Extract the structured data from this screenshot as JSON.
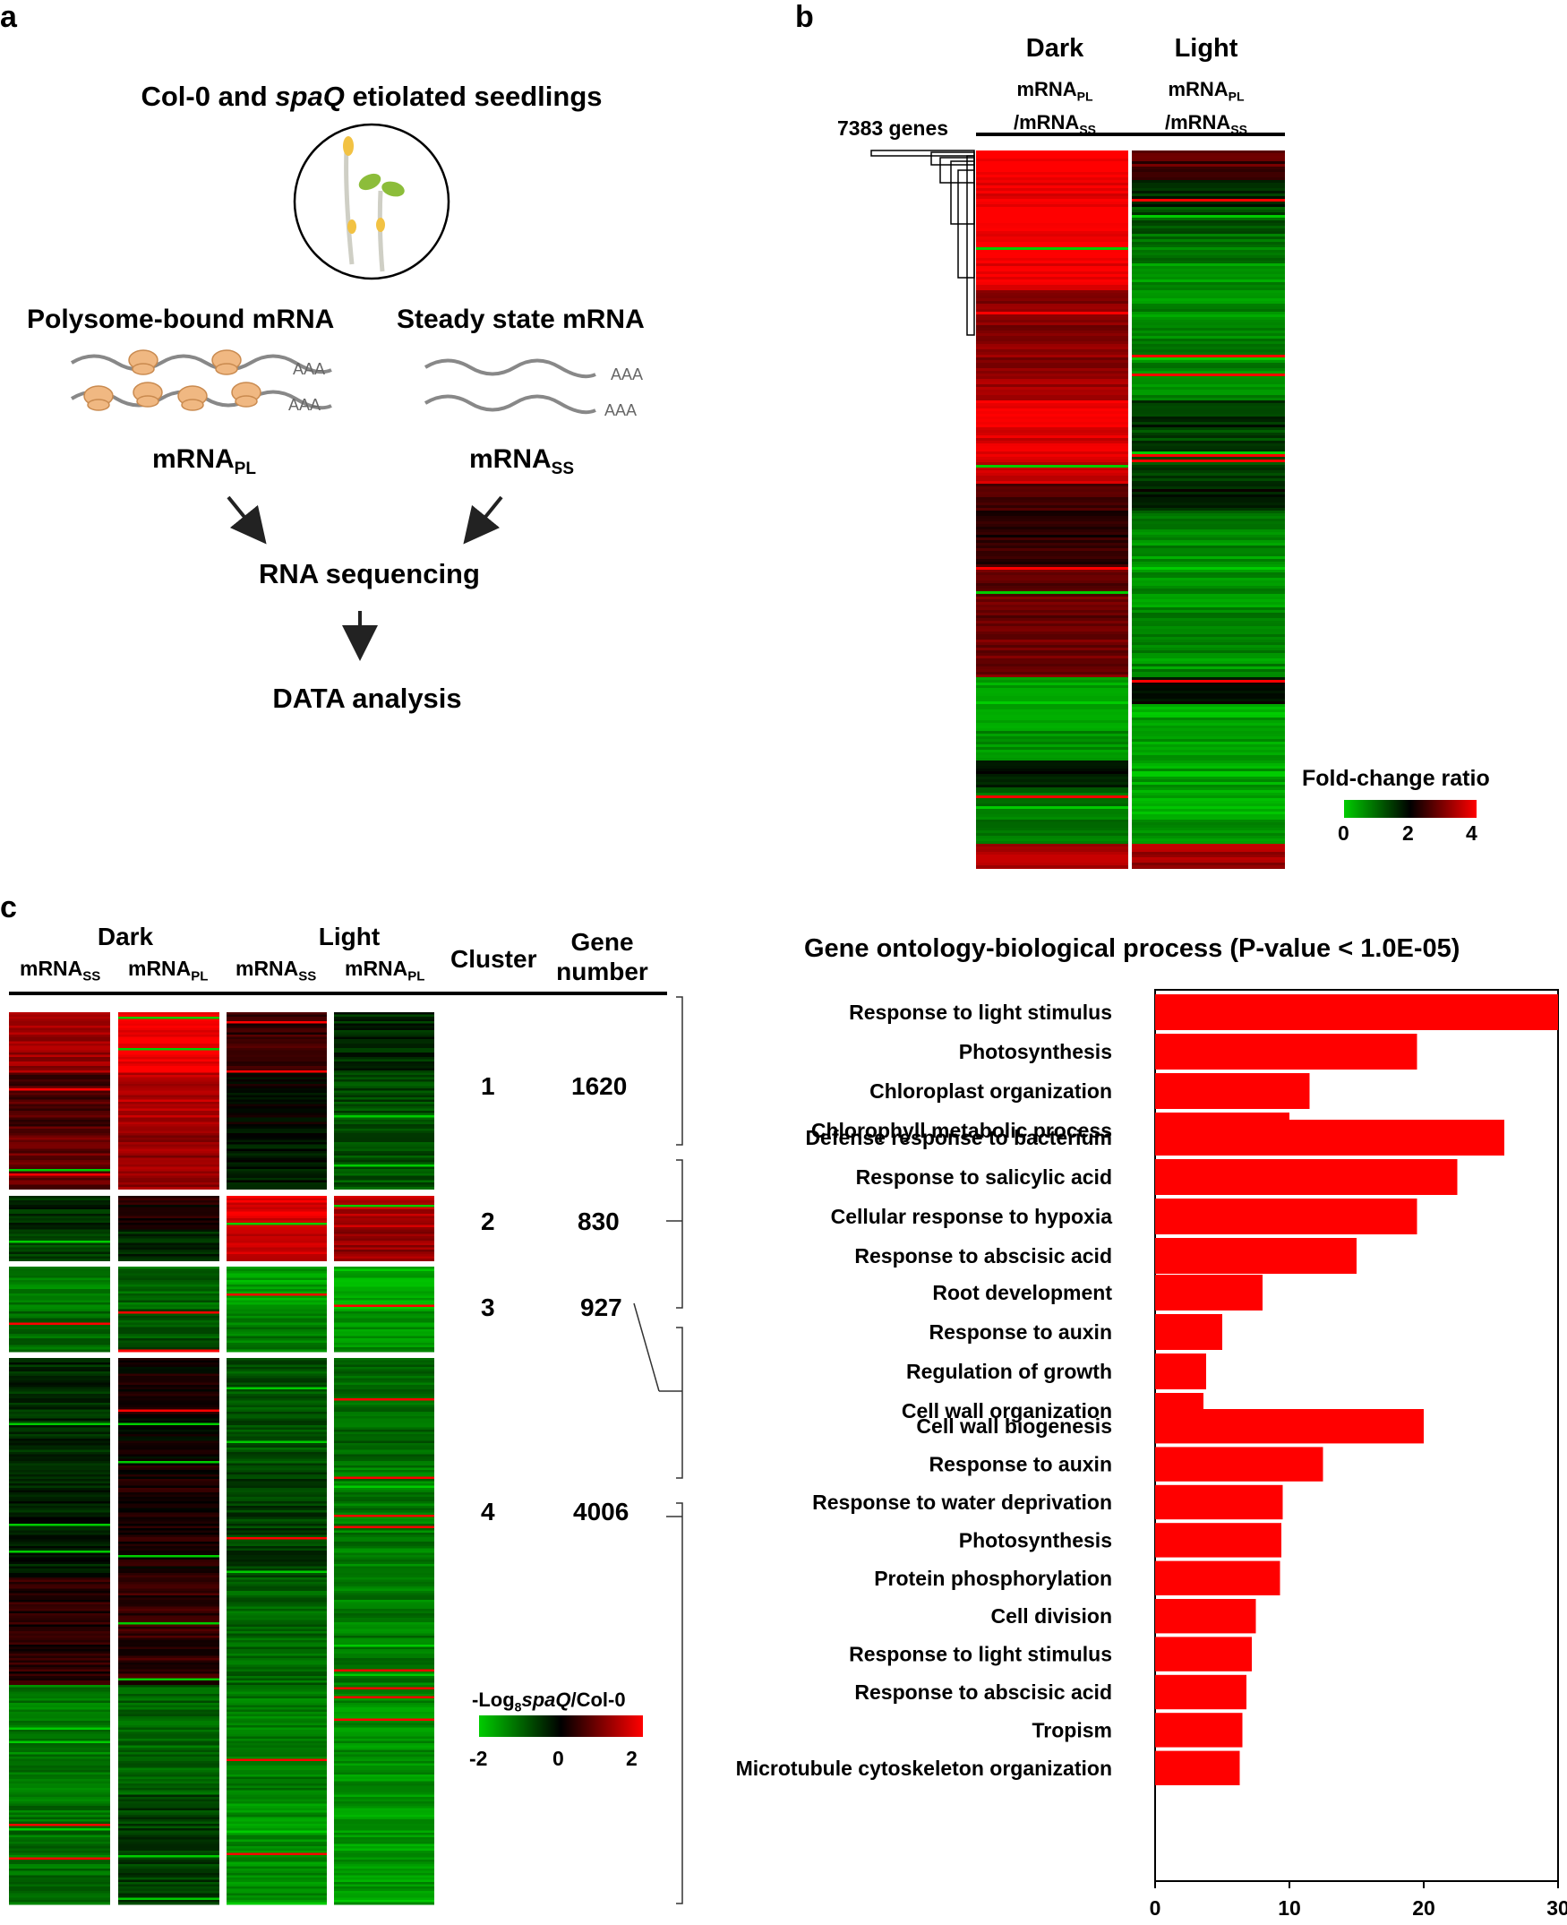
{
  "panel_a": {
    "letter": "a",
    "title_pre": "Col-0 and ",
    "title_italic": "spaQ",
    "title_post": " etiolated seedlings",
    "polysome_label": "Polysome-bound mRNA",
    "steady_label": "Steady state mRNA",
    "poly_a_tail": "AAA",
    "mrna_base": "mRNA",
    "pl_sub": "PL",
    "ss_sub": "SS",
    "step_sequencing": "RNA sequencing",
    "step_analysis": "DATA analysis"
  },
  "panel_b": {
    "letter": "b",
    "col_dark": "Dark",
    "col_light": "Light",
    "ratio_num": "mRNA",
    "ratio_num_sub": "PL",
    "ratio_den": "/mRNA",
    "ratio_den_sub": "SS",
    "gene_count_label": "7383 genes",
    "legend_title": "Fold-change ratio",
    "legend_ticks": [
      "0",
      "2",
      "4"
    ],
    "colors": {
      "low": "#00cc00",
      "mid": "#000000",
      "high": "#ff0000"
    }
  },
  "panel_c": {
    "letter": "c",
    "dark": "Dark",
    "light": "Light",
    "mrna": "mRNA",
    "ss": "SS",
    "pl": "PL",
    "cluster_header": "Cluster",
    "gene_number_header_1": "Gene",
    "gene_number_header_2": "number",
    "clusters": [
      {
        "id": "1",
        "genes": "1620"
      },
      {
        "id": "2",
        "genes": "830"
      },
      {
        "id": "3",
        "genes": "927"
      },
      {
        "id": "4",
        "genes": "4006"
      }
    ],
    "legend_title_pre": "-Log",
    "legend_title_sub": "8",
    "legend_title_italic": "spaQ",
    "legend_title_post": "/Col-0",
    "legend_ticks": [
      "-2",
      "0",
      "2"
    ]
  },
  "chart_data": {
    "type": "bar",
    "orientation": "horizontal",
    "title": "Gene ontology-biological process (P-value < 1.0E-05)",
    "xlim": [
      0,
      30
    ],
    "xticks": [
      "0",
      "10",
      "20",
      "30"
    ],
    "bar_color": "#ff0000",
    "groups": [
      {
        "categories": [
          "Response to light stimulus",
          "Photosynthesis",
          "Chloroplast organization",
          "Chlorophyll metabolic process"
        ],
        "values": [
          30,
          19.5,
          11.5,
          10
        ]
      },
      {
        "categories": [
          "Defense response to bacterium",
          "Response to salicylic acid",
          "Cellular response to hypoxia",
          "Response to abscisic acid"
        ],
        "values": [
          26,
          22.5,
          19.5,
          15
        ]
      },
      {
        "categories": [
          "Root development",
          "Response to auxin",
          "Regulation of growth",
          "Cell wall organization"
        ],
        "values": [
          8,
          5,
          3.8,
          3.6
        ]
      },
      {
        "categories": [
          "Cell wall biogenesis",
          "Response to auxin",
          "Response to water deprivation",
          "Photosynthesis",
          "Protein phosphorylation",
          "Cell division",
          "Response to light stimulus",
          "Response to abscisic acid",
          "Tropism",
          "Microtubule cytoskeleton organization"
        ],
        "values": [
          20,
          12.5,
          9.5,
          9.4,
          9.3,
          7.5,
          7.2,
          6.8,
          6.5,
          6.3
        ]
      }
    ]
  }
}
